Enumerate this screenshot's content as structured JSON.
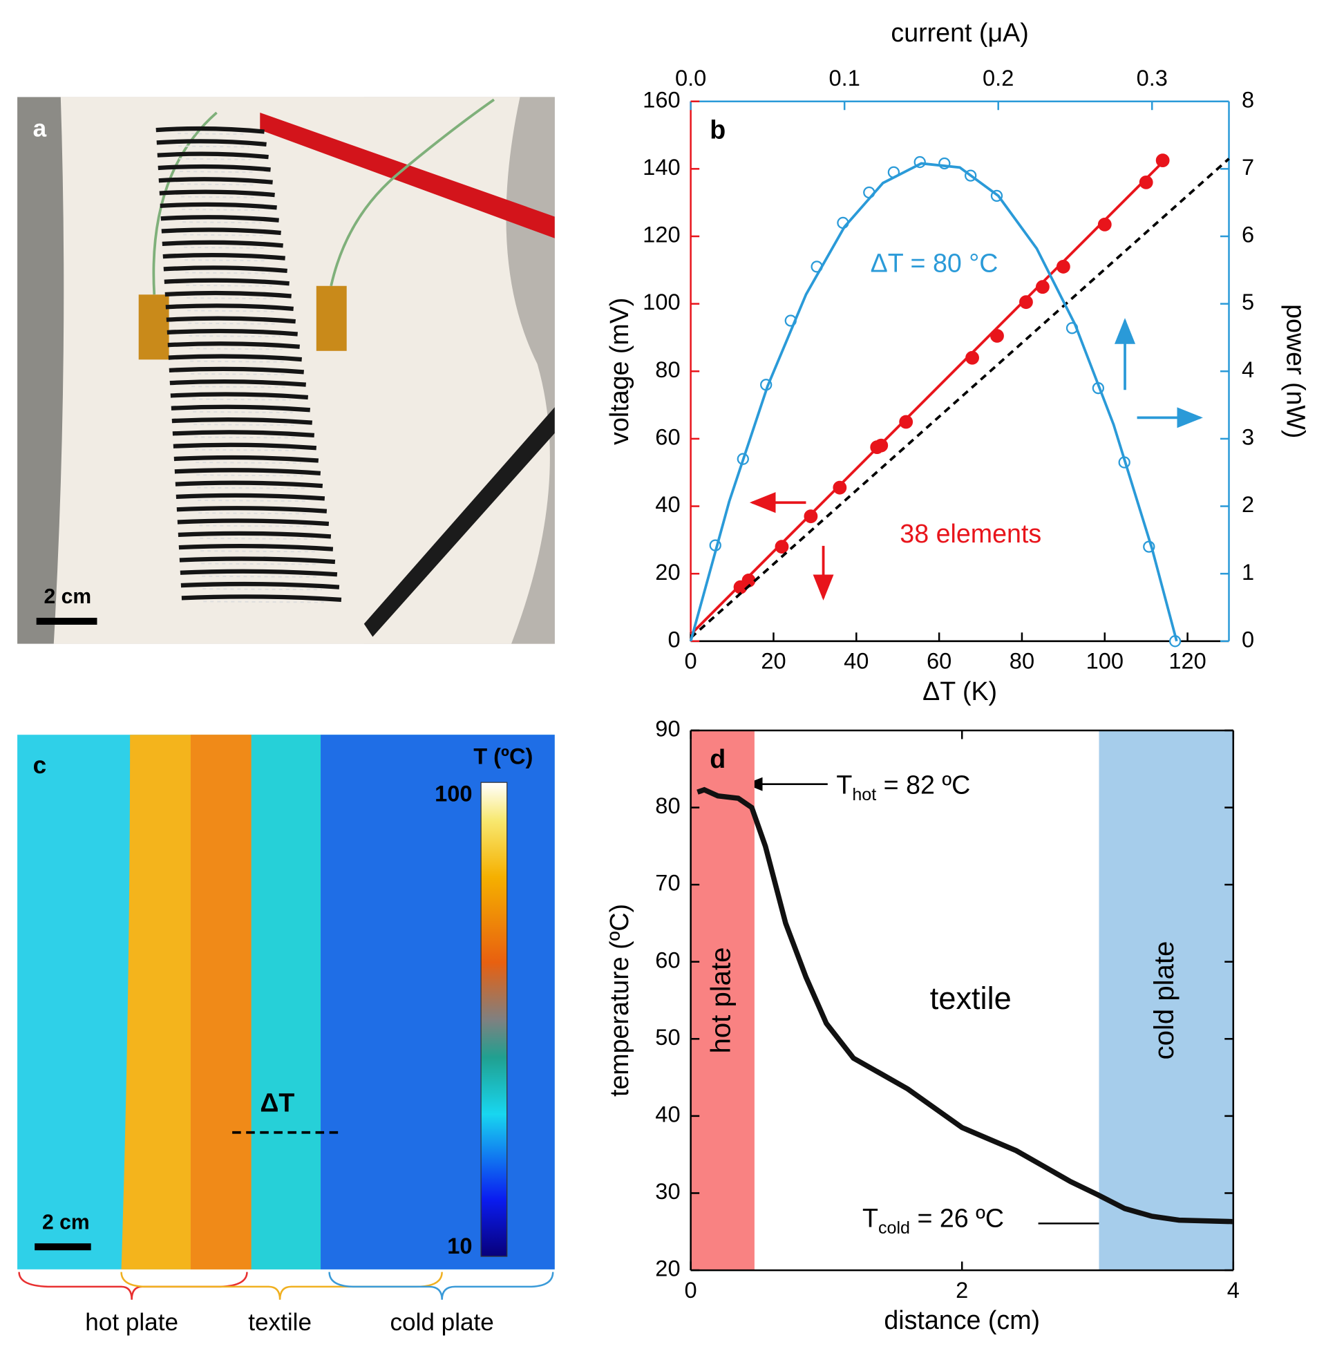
{
  "photo_a": {
    "label": "a",
    "scale": "2 cm"
  },
  "thermal_c": {
    "label": "c",
    "scale": "2 cm",
    "delta": "ΔT",
    "colorbar": {
      "title": "T (ºC)",
      "max": "100",
      "min": "10"
    },
    "regions": [
      "hot plate",
      "textile",
      "cold plate"
    ]
  },
  "chart_data": [
    {
      "type": "line",
      "label": "b",
      "xlabel": "ΔT (K)",
      "x2label": "current (μA)",
      "ylabel": "voltage (mV)",
      "y2label": "power (nW)",
      "y_axis_color": "#e8141b",
      "y2_axis_color": "#2a9ad8",
      "xlim": [
        0,
        130
      ],
      "xticks": [
        0,
        20,
        40,
        60,
        80,
        100,
        120
      ],
      "x2lim": [
        0,
        0.35
      ],
      "x2ticks": [
        {
          "value": 0,
          "label": "0.0"
        },
        0.1,
        0.2,
        0.3
      ],
      "ylim": [
        0,
        160
      ],
      "yticks": [
        0,
        20,
        40,
        60,
        80,
        100,
        120,
        140,
        160
      ],
      "y2lim": [
        0,
        8
      ],
      "y2ticks": [
        0,
        1,
        2,
        3,
        4,
        5,
        6,
        7,
        8
      ],
      "series": [
        {
          "color": "#e8141b",
          "marker": "filled-circle",
          "x": [
            12,
            14,
            22,
            29,
            36,
            45,
            46,
            52,
            68,
            74,
            81,
            85,
            90,
            100,
            110,
            114
          ],
          "values": [
            16,
            18,
            28,
            37,
            45.5,
            57.5,
            58,
            65,
            84,
            90.5,
            100.5,
            105,
            111,
            123.5,
            136,
            142.5
          ]
        },
        {
          "color": "#e8141b",
          "style": "solid",
          "x": [
            0,
            114
          ],
          "values": [
            2,
            142
          ]
        },
        {
          "color": "#000000",
          "style": "dashed",
          "x": [
            0,
            130
          ],
          "values": [
            1,
            143
          ]
        },
        {
          "color": "#2a9ad8",
          "marker": "open-circle",
          "xaxis": "x2",
          "axis": "y2",
          "x": [
            0.016,
            0.034,
            0.049,
            0.065,
            0.082,
            0.099,
            0.116,
            0.132,
            0.149,
            0.165,
            0.182,
            0.199,
            0.248,
            0.265,
            0.282,
            0.298,
            0.315
          ],
          "values": [
            1.42,
            2.7,
            3.8,
            4.75,
            5.55,
            6.2,
            6.65,
            6.95,
            7.1,
            7.08,
            6.9,
            6.6,
            4.64,
            3.75,
            2.65,
            1.4,
            0
          ]
        },
        {
          "color": "#2a9ad8",
          "style": "solid",
          "xaxis": "x2",
          "axis": "y2",
          "x": [
            0,
            0.025,
            0.05,
            0.075,
            0.1,
            0.125,
            0.15,
            0.175,
            0.2,
            0.225,
            0.25,
            0.275,
            0.3,
            0.316
          ],
          "values": [
            0,
            2.07,
            3.78,
            5.14,
            6.14,
            6.79,
            7.08,
            7.02,
            6.6,
            5.82,
            4.69,
            3.21,
            1.37,
            0
          ]
        }
      ],
      "annotations": [
        {
          "text": "ΔT = 80 °C",
          "color": "#2a9ad8"
        },
        {
          "text": "38 elements",
          "color": "#e8141b"
        }
      ]
    },
    {
      "type": "line",
      "label": "d",
      "xlabel": "distance (cm)",
      "ylabel": "temperature (ºC)",
      "xlim": [
        0,
        4
      ],
      "xticks": [
        0,
        2,
        4
      ],
      "ylim": [
        20,
        90
      ],
      "yticks": [
        20,
        30,
        40,
        50,
        60,
        70,
        80,
        90
      ],
      "regions": [
        {
          "text": "hot plate",
          "color": "#f98282",
          "x": [
            0,
            0.47
          ]
        },
        {
          "text": "cold plate",
          "color": "#a6cdeb",
          "x": [
            3.01,
            4
          ]
        }
      ],
      "series": [
        {
          "color": "#111111",
          "style": "solid",
          "x": [
            0.05,
            0.1,
            0.2,
            0.35,
            0.45,
            0.55,
            0.7,
            0.85,
            1.0,
            1.2,
            1.4,
            1.6,
            1.8,
            2.0,
            2.2,
            2.4,
            2.6,
            2.8,
            3.0,
            3.2,
            3.4,
            3.6,
            4.0
          ],
          "values": [
            82,
            82.3,
            81.5,
            81.2,
            80,
            75,
            65,
            58,
            52,
            47.5,
            45.5,
            43.5,
            41,
            38.5,
            37,
            35.5,
            33.5,
            31.5,
            29.8,
            28,
            27,
            26.5,
            26.3
          ]
        }
      ],
      "annotations": [
        {
          "text": "textile"
        },
        {
          "text": "T",
          "subscript": "hot",
          "rest": " = 82 ºC"
        },
        {
          "text": "T",
          "subscript": "cold",
          "rest": " = 26 ºC"
        }
      ]
    }
  ]
}
